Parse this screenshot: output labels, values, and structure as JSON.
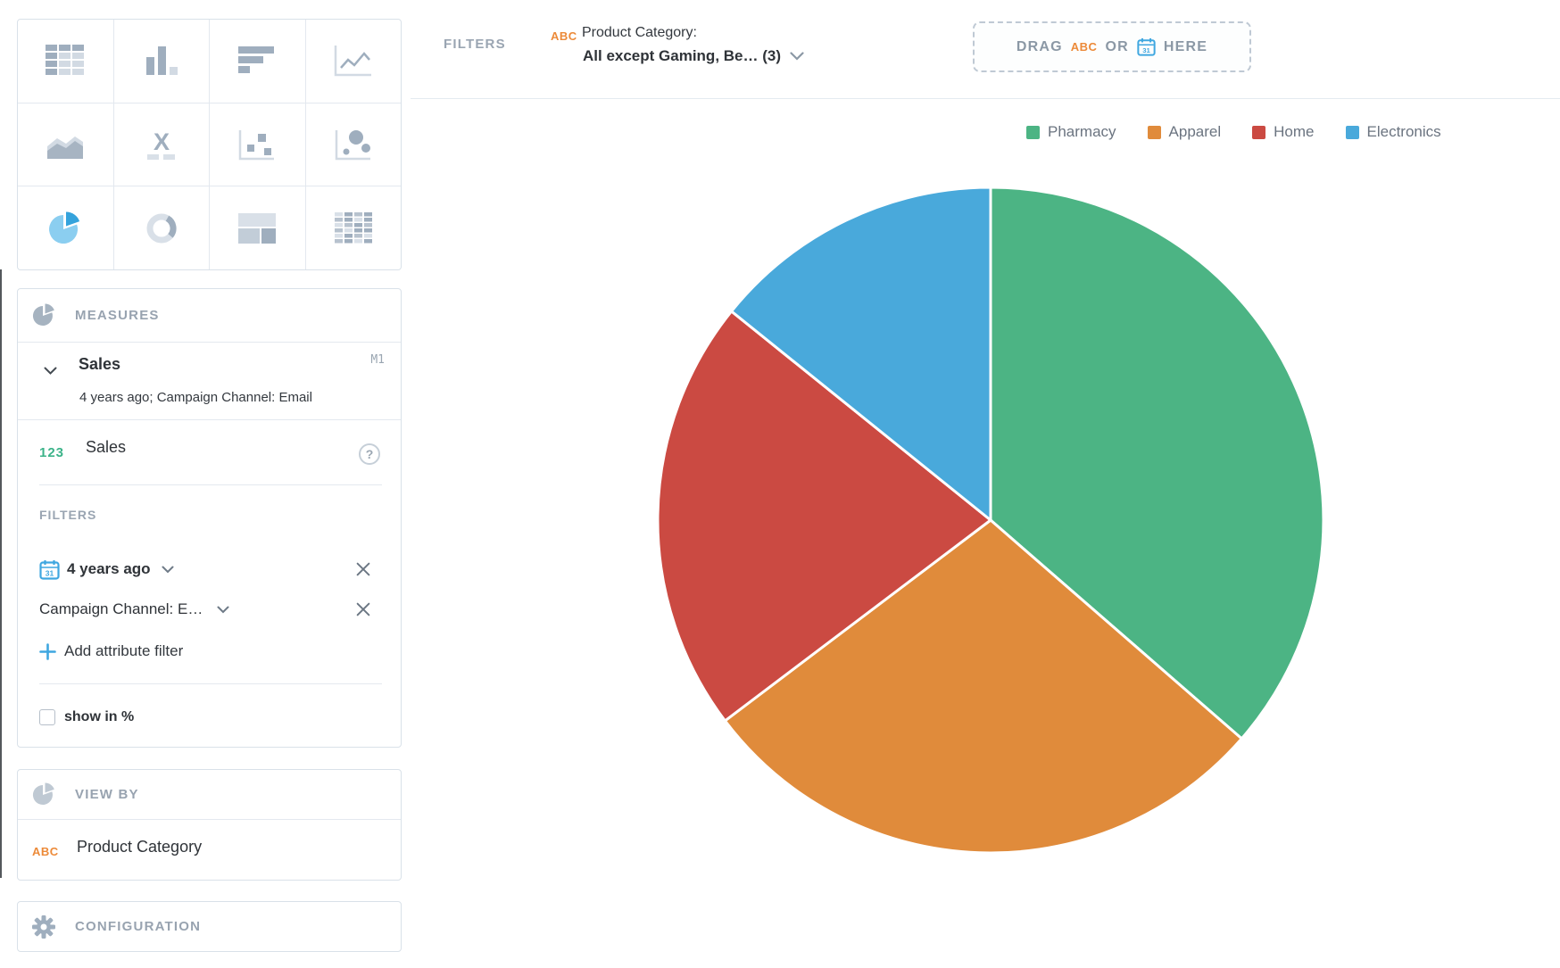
{
  "colors": {
    "accent_blue": "#3FA7E0",
    "accent_orange": "#EC8A39",
    "accent_green": "#3CB389",
    "panel_border": "#D9E1E9",
    "muted_text": "#98A3B0",
    "dark_text": "#2F3338"
  },
  "icons": {
    "headline": "X",
    "calendar_day": "31",
    "help": "?"
  },
  "chart_picker": {
    "types": [
      "table",
      "column-chart",
      "bar-chart",
      "line-chart",
      "area-chart",
      "headline",
      "scatter-plot",
      "bubble-chart",
      "pie-chart",
      "donut-chart",
      "treemap",
      "heatmap"
    ],
    "selected": "pie-chart"
  },
  "measures_panel": {
    "header": "MEASURES",
    "item": {
      "title": "Sales",
      "tag": "M1",
      "subtitle": "4 years ago; Campaign Channel: Email",
      "metric_prefix": "123",
      "metric_label": "Sales"
    },
    "filters_header": "FILTERS",
    "date_filter": "4 years ago",
    "attribute_filter": "Campaign Channel: E…",
    "add_attribute_filter": "Add attribute filter",
    "show_in_percent": "show in %"
  },
  "view_by_panel": {
    "header": "VIEW BY",
    "item": {
      "badge": "ABC",
      "label": "Product Category"
    }
  },
  "configuration_panel": {
    "header": "CONFIGURATION"
  },
  "filter_bar": {
    "label": "FILTERS",
    "chip": {
      "badge": "ABC",
      "title": "Product Category:",
      "value": "All except Gaming, Be… (3)"
    },
    "dropzone": {
      "drag": "DRAG",
      "abc": "ABC",
      "or": "OR",
      "here": "HERE"
    }
  },
  "chart_data": {
    "type": "pie",
    "title": "",
    "categories": [
      "Pharmacy",
      "Apparel",
      "Home",
      "Electronics"
    ],
    "values": [
      36.4,
      28.3,
      21.1,
      14.2
    ],
    "values_unit": "percent_of_total_estimated_from_slice_angles",
    "slice_angles_deg": [
      131,
      102,
      76,
      51
    ],
    "colors": [
      "#4CB484",
      "#E08B3B",
      "#CB4A42",
      "#49A9DB"
    ],
    "start_angle_deg": 0,
    "direction": "clockwise",
    "legend_position": "top-right",
    "data_labels": false
  }
}
